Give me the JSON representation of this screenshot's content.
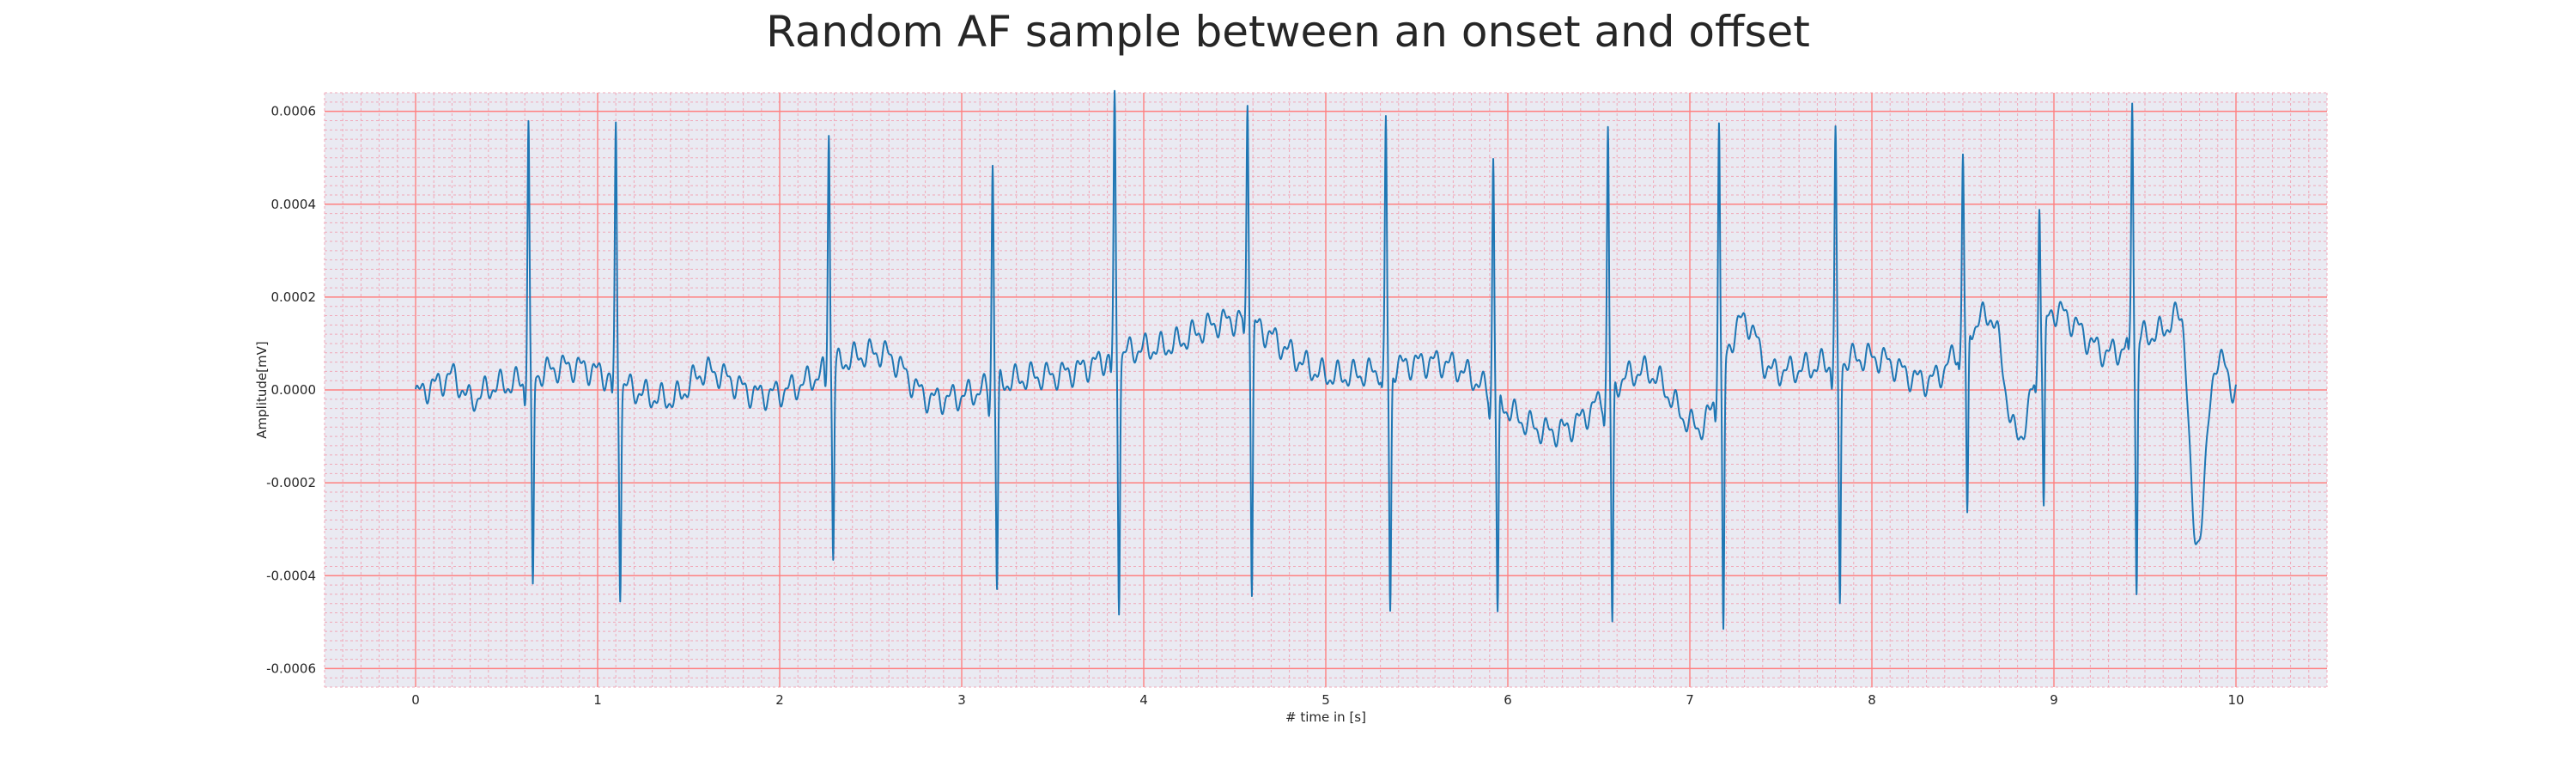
{
  "chart_data": {
    "type": "line",
    "title": "Random AF sample between an onset and offset",
    "xlabel": "# time in [s]",
    "ylabel": "Amplitude[mV]",
    "xlim": [
      -0.5,
      10.5
    ],
    "ylim": [
      -0.00064,
      0.00064
    ],
    "xticks": [
      0,
      1,
      2,
      3,
      4,
      5,
      6,
      7,
      8,
      9,
      10
    ],
    "yticks": [
      -0.0006,
      -0.0004,
      -0.0002,
      0.0,
      0.0002,
      0.0004,
      0.0006
    ],
    "xtick_labels": [
      "0",
      "1",
      "2",
      "3",
      "4",
      "5",
      "6",
      "7",
      "8",
      "9",
      "10"
    ],
    "ytick_labels": [
      "-0.0006",
      "-0.0004",
      "-0.0002",
      "0.0000",
      "0.0002",
      "0.0004",
      "0.0006"
    ],
    "grid": true,
    "colors": {
      "line": "#1f77b4",
      "background": "#eaeaf2",
      "major_grid": "#ff8080",
      "minor_grid": "#f0a8b8"
    },
    "series": [
      {
        "beats": [
          {
            "t": 0.62,
            "peak": 0.00056,
            "trough": -0.00047
          },
          {
            "t": 1.1,
            "peak": 0.000535,
            "trough": -0.00044
          },
          {
            "t": 2.27,
            "peak": 0.00052,
            "trough": -0.0004
          },
          {
            "t": 3.17,
            "peak": 0.000485,
            "trough": -0.000445
          },
          {
            "t": 3.84,
            "peak": 0.000545,
            "trough": -0.00053
          },
          {
            "t": 4.57,
            "peak": 0.000485,
            "trough": -0.00058
          },
          {
            "t": 5.33,
            "peak": 0.000525,
            "trough": -0.00053
          },
          {
            "t": 5.92,
            "peak": 0.000525,
            "trough": -0.00048
          },
          {
            "t": 6.55,
            "peak": 0.000565,
            "trough": -0.000525
          },
          {
            "t": 7.16,
            "peak": 0.00058,
            "trough": -0.000585
          },
          {
            "t": 7.8,
            "peak": 0.000485,
            "trough": -0.000525
          },
          {
            "t": 8.5,
            "peak": 0.000405,
            "trough": -0.000415
          },
          {
            "t": 8.92,
            "peak": 0.00034,
            "trough": -0.00039
          },
          {
            "t": 9.43,
            "peak": 0.000535,
            "trough": -0.00054
          }
        ],
        "baseline_noise": [
          {
            "t": 0.0,
            "v": -1e-05
          },
          {
            "t": 0.1,
            "v": 1e-05
          },
          {
            "t": 0.2,
            "v": 3e-05
          },
          {
            "t": 0.3,
            "v": -2e-05
          },
          {
            "t": 0.45,
            "v": 1e-05
          },
          {
            "t": 0.85,
            "v": 5e-05
          },
          {
            "t": 1.4,
            "v": -2e-05
          },
          {
            "t": 1.6,
            "v": 4e-05
          },
          {
            "t": 1.9,
            "v": -1e-05
          },
          {
            "t": 2.55,
            "v": 8e-05
          },
          {
            "t": 2.85,
            "v": -2e-05
          },
          {
            "t": 3.45,
            "v": 3e-05
          },
          {
            "t": 4.05,
            "v": 9e-05
          },
          {
            "t": 4.5,
            "v": 0.00015
          },
          {
            "t": 5.05,
            "v": 3e-05
          },
          {
            "t": 5.6,
            "v": 6e-05
          },
          {
            "t": 6.25,
            "v": -9e-05
          },
          {
            "t": 6.75,
            "v": 4e-05
          },
          {
            "t": 7.05,
            "v": -8e-05
          },
          {
            "t": 7.3,
            "v": 0.00015
          },
          {
            "t": 7.45,
            "v": 4e-05
          },
          {
            "t": 8.0,
            "v": 7e-05
          },
          {
            "t": 8.3,
            "v": 2e-05
          },
          {
            "t": 8.65,
            "v": 0.00016
          },
          {
            "t": 8.8,
            "v": -0.0001
          },
          {
            "t": 9.0,
            "v": 0.00017
          },
          {
            "t": 9.3,
            "v": 8e-05
          },
          {
            "t": 9.55,
            "v": 0.00012
          },
          {
            "t": 9.7,
            "v": 0.00016
          },
          {
            "t": 9.78,
            "v": -0.00033
          },
          {
            "t": 9.9,
            "v": 7e-05
          },
          {
            "t": 10.0,
            "v": 0.0
          }
        ]
      }
    ]
  }
}
